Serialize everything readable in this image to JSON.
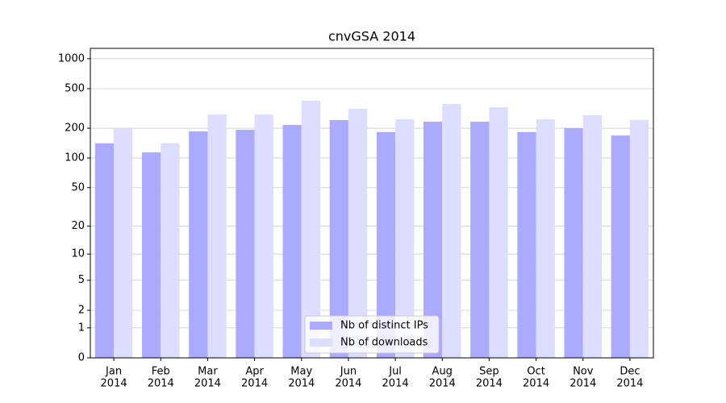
{
  "chart_data": {
    "type": "bar",
    "title": "cnvGSA 2014",
    "categories": [
      [
        "Jan",
        "2014"
      ],
      [
        "Feb",
        "2014"
      ],
      [
        "Mar",
        "2014"
      ],
      [
        "Apr",
        "2014"
      ],
      [
        "May",
        "2014"
      ],
      [
        "Jun",
        "2014"
      ],
      [
        "Jul",
        "2014"
      ],
      [
        "Aug",
        "2014"
      ],
      [
        "Sep",
        "2014"
      ],
      [
        "Oct",
        "2014"
      ],
      [
        "Nov",
        "2014"
      ],
      [
        "Dec",
        "2014"
      ]
    ],
    "series": [
      {
        "name": "Nb of distinct IPs",
        "color": "#aaaaff",
        "values": [
          141,
          114,
          186,
          193,
          216,
          242,
          183,
          233,
          233,
          183,
          200,
          169
        ]
      },
      {
        "name": "Nb of downloads",
        "color": "#ddddff",
        "values": [
          200,
          141,
          275,
          275,
          378,
          314,
          246,
          351,
          325,
          246,
          270,
          242
        ]
      }
    ],
    "yscale": "log1p",
    "ylim": [
      0,
      1270
    ],
    "yticks": [
      0,
      1,
      2,
      5,
      10,
      20,
      50,
      100,
      200,
      500,
      1000
    ],
    "grid": true,
    "legend": "lower center"
  }
}
